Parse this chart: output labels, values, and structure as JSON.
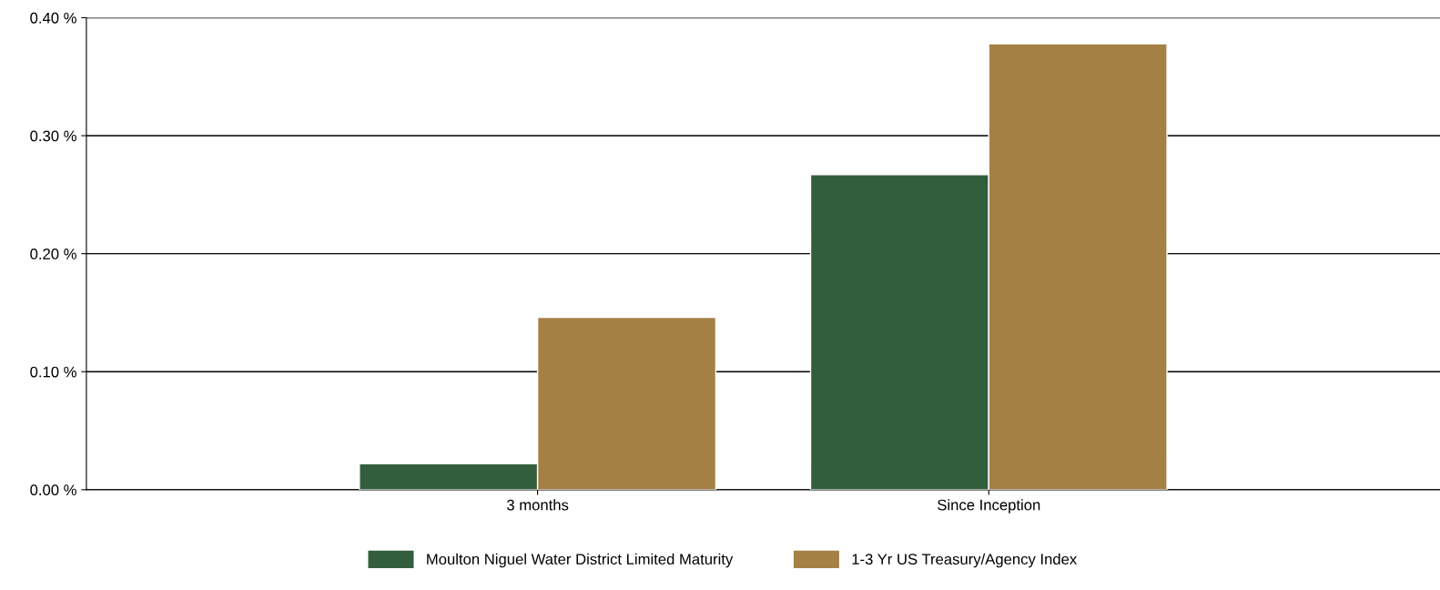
{
  "chart_data": {
    "type": "bar",
    "categories": [
      "3 months",
      "Since Inception"
    ],
    "series": [
      {
        "name": "Moulton Niguel Water District Limited Maturity",
        "color": "#335e3d",
        "values": [
          0.022,
          0.267
        ]
      },
      {
        "name": "1-3 Yr US Treasury/Agency Index",
        "color": "#a58045",
        "values": [
          0.146,
          0.378
        ]
      }
    ],
    "ylim": [
      0,
      0.4
    ],
    "yticks": [
      {
        "value": 0,
        "label": "0.00 %"
      },
      {
        "value": 0.1,
        "label": "0.10 %"
      },
      {
        "value": 0.2,
        "label": "0.20 %"
      },
      {
        "value": 0.3,
        "label": "0.30 %"
      },
      {
        "value": 0.4,
        "label": "0.40 %"
      }
    ],
    "grid": "y",
    "legend": "bottom"
  }
}
